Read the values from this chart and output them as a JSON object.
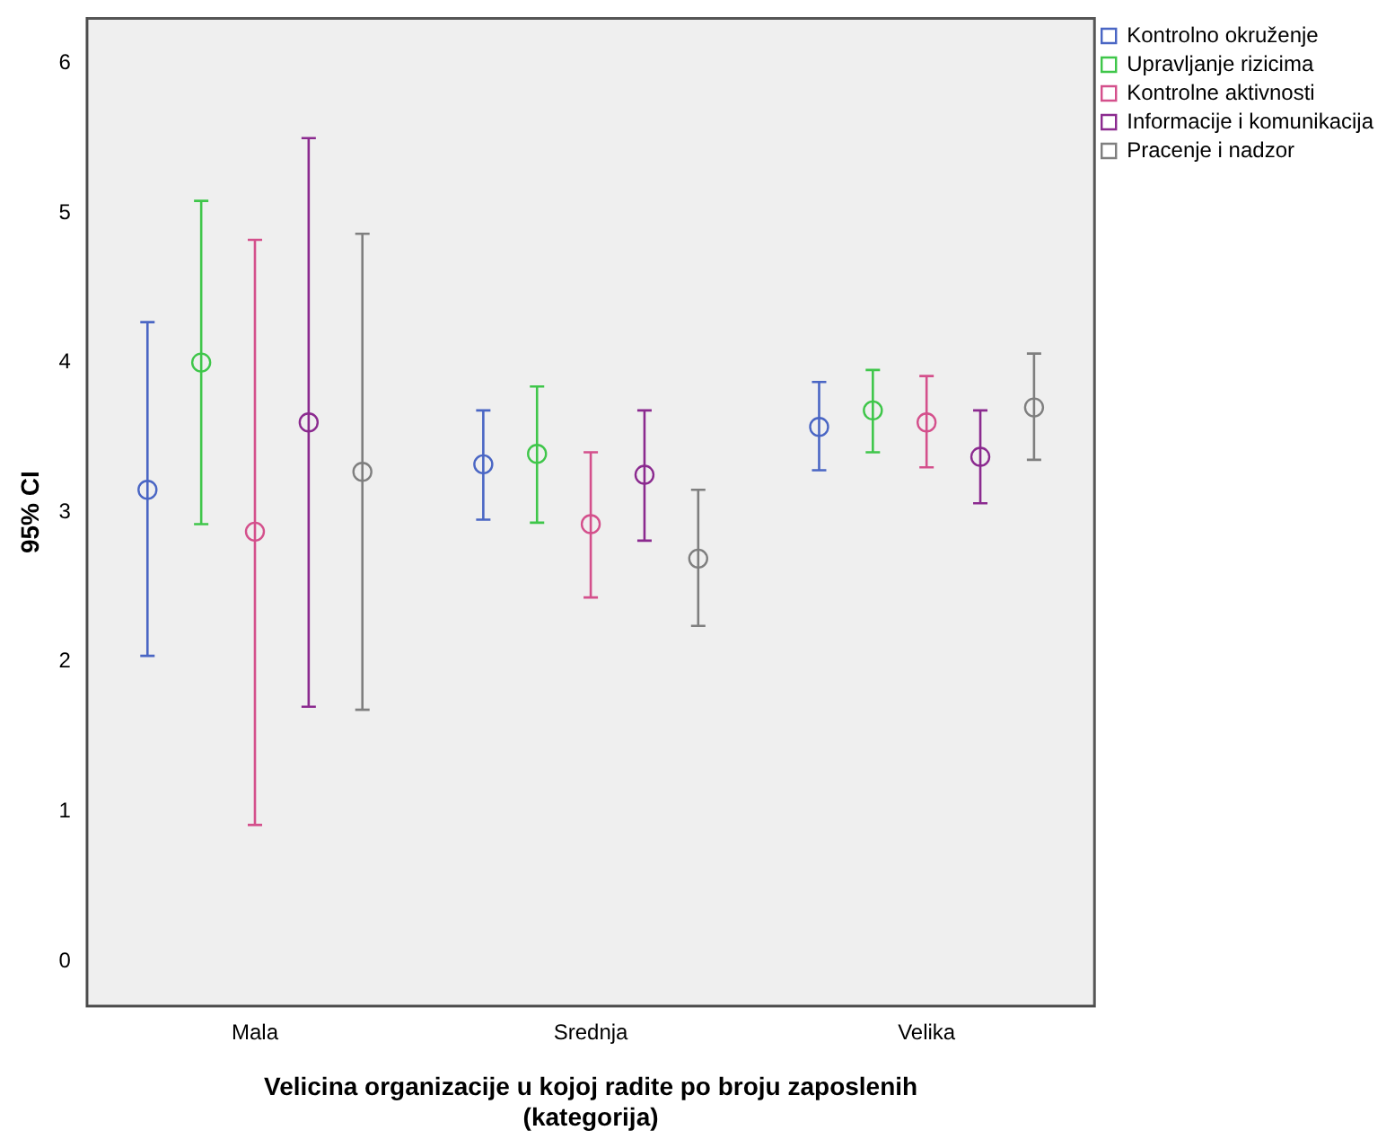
{
  "chart_data": {
    "type": "scatter",
    "ylabel": "95% CI",
    "xlabel": "Velicina organizacije u kojoj radite po broju zaposlenih\n(kategorija)",
    "categories": [
      "Mala",
      "Srednja",
      "Velika"
    ],
    "ylim": [
      -0.3,
      6.3
    ],
    "yticks": [
      0,
      1,
      2,
      3,
      4,
      5,
      6
    ],
    "marker": "circle",
    "legend": "right",
    "series": [
      {
        "name": "Kontrolno okruženje",
        "color": "#4a66c4",
        "values": [
          3.15,
          3.32,
          3.57
        ],
        "errors": [
          [
            2.04,
            4.27
          ],
          [
            2.95,
            3.68
          ],
          [
            3.28,
            3.87
          ]
        ]
      },
      {
        "name": "Upravljanje rizicima",
        "color": "#3fc64a",
        "values": [
          4.0,
          3.39,
          3.68
        ],
        "errors": [
          [
            2.92,
            5.08
          ],
          [
            2.93,
            3.84
          ],
          [
            3.4,
            3.95
          ]
        ]
      },
      {
        "name": "Kontrolne aktivnosti",
        "color": "#d4508c",
        "values": [
          2.87,
          2.92,
          3.6
        ],
        "errors": [
          [
            0.91,
            4.82
          ],
          [
            2.43,
            3.4
          ],
          [
            3.3,
            3.91
          ]
        ]
      },
      {
        "name": "Informacije i komunikacija",
        "color": "#8b2a8f",
        "values": [
          3.6,
          3.25,
          3.37
        ],
        "errors": [
          [
            1.7,
            5.5
          ],
          [
            2.81,
            3.68
          ],
          [
            3.06,
            3.68
          ]
        ]
      },
      {
        "name": "Pracenje i nadzor",
        "color": "#7f7f7f",
        "values": [
          3.27,
          2.69,
          3.7
        ],
        "errors": [
          [
            1.68,
            4.86
          ],
          [
            2.24,
            3.15
          ],
          [
            3.35,
            4.06
          ]
        ]
      }
    ]
  }
}
